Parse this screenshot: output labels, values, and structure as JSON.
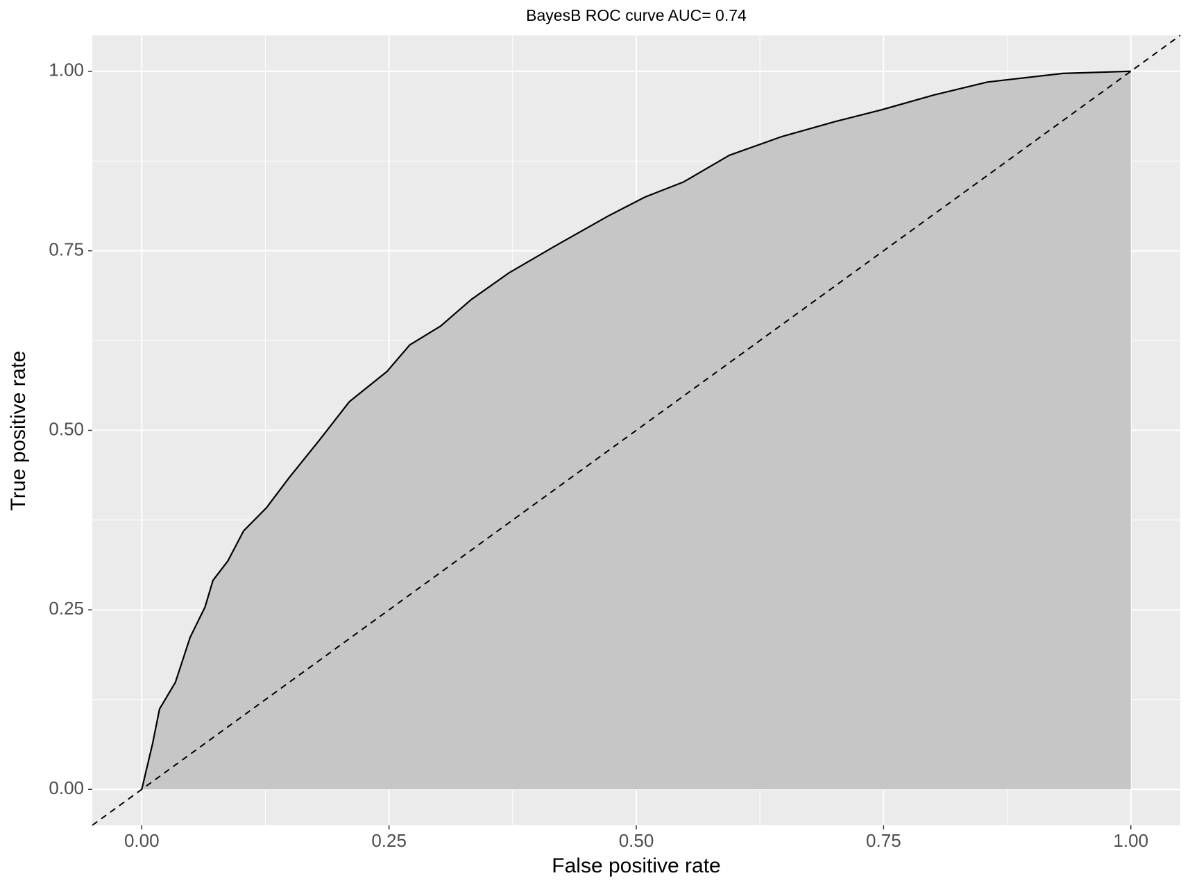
{
  "chart_data": {
    "type": "area",
    "title": "BayesB ROC curve  AUC= 0.74",
    "x_label": "False positive rate",
    "y_label": "True positive rate",
    "x": [
      0,
      0.011,
      0.018,
      0.034,
      0.049,
      0.064,
      0.072,
      0.087,
      0.103,
      0.126,
      0.149,
      0.18,
      0.21,
      0.248,
      0.271,
      0.302,
      0.333,
      0.371,
      0.417,
      0.471,
      0.509,
      0.548,
      0.594,
      0.647,
      0.701,
      0.747,
      0.801,
      0.855,
      0.931,
      1
    ],
    "series": [
      {
        "values": [
          0,
          0.064,
          0.112,
          0.149,
          0.212,
          0.254,
          0.291,
          0.318,
          0.36,
          0.392,
          0.434,
          0.487,
          0.54,
          0.582,
          0.619,
          0.645,
          0.682,
          0.719,
          0.756,
          0.798,
          0.825,
          0.846,
          0.883,
          0.909,
          0.93,
          0.946,
          0.967,
          0.985,
          0.997,
          1
        ],
        "color": "#000000",
        "fill": "#c6c6c6"
      }
    ],
    "xlim": [
      -0.05,
      1.05
    ],
    "ylim": [
      -0.05,
      1.05
    ],
    "xticks": [
      {
        "value": 0,
        "label": "0.00"
      },
      {
        "value": 0.25,
        "label": "0.25"
      },
      {
        "value": 0.5,
        "label": "0.50"
      },
      {
        "value": 0.75,
        "label": "0.75"
      },
      {
        "value": 1,
        "label": "1.00"
      }
    ],
    "yticks": [
      {
        "value": 0,
        "label": "0.00"
      },
      {
        "value": 0.25,
        "label": "0.25"
      },
      {
        "value": 0.5,
        "label": "0.50"
      },
      {
        "value": 0.75,
        "label": "0.75"
      },
      {
        "value": 1,
        "label": "1.00"
      }
    ],
    "x_minor_ticks": [
      0.125,
      0.375,
      0.625,
      0.875
    ],
    "y_minor_ticks": [
      0.125,
      0.375,
      0.625,
      0.875
    ],
    "grid": true,
    "panel_color": "#ebebeb",
    "diagonal": true
  }
}
